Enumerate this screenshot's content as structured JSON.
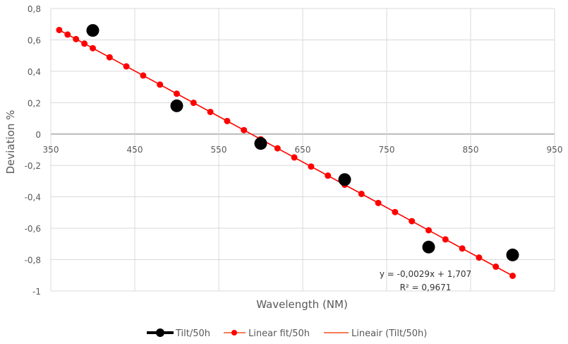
{
  "chart_data": {
    "type": "scatter",
    "title": "",
    "xlabel": "Wavelength (NM)",
    "ylabel": "Deviation %",
    "xlim": [
      350,
      950
    ],
    "ylim": [
      -1,
      0.8
    ],
    "x_ticks": [
      350,
      450,
      550,
      650,
      750,
      850,
      950
    ],
    "x_tick_labels": [
      "350",
      "450",
      "550",
      "650",
      "750",
      "850",
      "950"
    ],
    "y_ticks": [
      0.8,
      0.6,
      0.4,
      0.2,
      0,
      -0.2,
      -0.4,
      -0.6,
      -0.8,
      -1
    ],
    "y_tick_labels": [
      "0,8",
      "0,6",
      "0,4",
      "0,2",
      "0",
      "-0,2",
      "-0,4",
      "-0,6",
      "-0,8",
      "-1"
    ],
    "grid": true,
    "legend_position": "bottom",
    "series": [
      {
        "name": "Tilt/50h",
        "color": "#000000",
        "x": [
          400,
          500,
          600,
          700,
          800,
          900
        ],
        "y": [
          0.66,
          0.18,
          -0.06,
          -0.29,
          -0.72,
          -0.77
        ]
      },
      {
        "name": "Linear fit/50h",
        "color": "#ff0000",
        "x": [
          360,
          370,
          380,
          390,
          400,
          420,
          440,
          460,
          480,
          500,
          520,
          540,
          560,
          580,
          600,
          620,
          640,
          660,
          680,
          700,
          720,
          740,
          760,
          780,
          800,
          820,
          840,
          860,
          880,
          900
        ],
        "y": [
          0.663,
          0.634,
          0.605,
          0.576,
          0.547,
          0.489,
          0.431,
          0.373,
          0.315,
          0.257,
          0.199,
          0.141,
          0.083,
          0.025,
          -0.033,
          -0.091,
          -0.149,
          -0.207,
          -0.265,
          -0.323,
          -0.381,
          -0.439,
          -0.497,
          -0.555,
          -0.613,
          -0.671,
          -0.729,
          -0.787,
          -0.845,
          -0.903
        ]
      },
      {
        "name": "Lineair (Tilt/50h)",
        "color": "#f4511e",
        "type": "trendline",
        "slope": -0.0029,
        "intercept": 1.707,
        "x_range": [
          360,
          900
        ]
      }
    ],
    "annotations": {
      "equation": "y = -0,0029x + 1,707",
      "r_squared": "R² = 0,9671"
    }
  }
}
